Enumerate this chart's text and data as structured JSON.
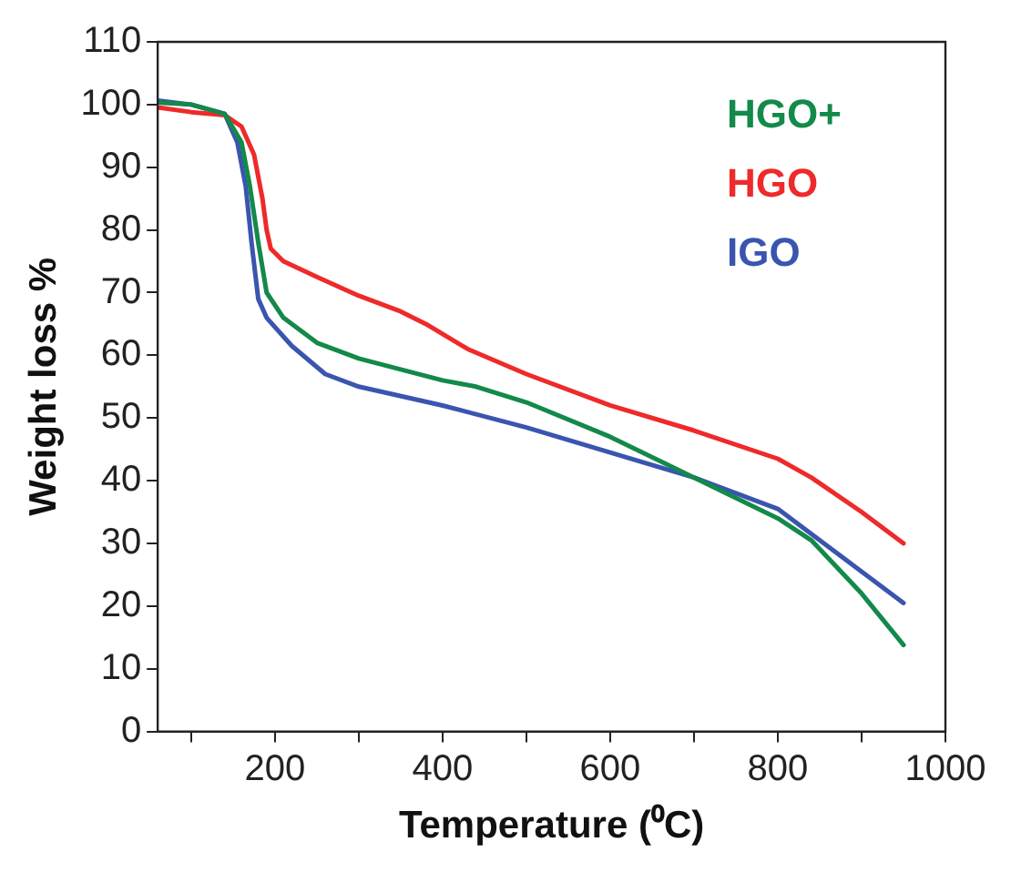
{
  "chart_data": {
    "type": "line",
    "xlabel": "Temperature (⁰C)",
    "ylabel": "Weight loss %",
    "xlim": [
      60,
      1000
    ],
    "xticks": [
      {
        "value": 100,
        "label": null
      },
      200,
      {
        "value": 300,
        "label": null
      },
      400,
      {
        "value": 500,
        "label": null
      },
      600,
      {
        "value": 700,
        "label": null
      },
      800,
      {
        "value": 900,
        "label": null
      },
      1000
    ],
    "ylim": [
      0,
      110
    ],
    "yticks": [
      0,
      10,
      20,
      30,
      40,
      50,
      60,
      70,
      80,
      90,
      100,
      110
    ],
    "grid": false,
    "legend": "top right",
    "marker": "none",
    "line_style": "solid",
    "series": [
      {
        "name": "HGO+",
        "color": "#13894a",
        "x": [
          62,
          100,
          140,
          160,
          170,
          180,
          190,
          210,
          250,
          300,
          400,
          440,
          500,
          600,
          700,
          800,
          840,
          900,
          950
        ],
        "values": [
          100.3,
          100,
          98.5,
          94,
          87,
          78,
          70,
          66,
          62,
          59.5,
          56,
          55,
          52.5,
          47,
          40.5,
          34,
          30.5,
          22,
          13.8
        ]
      },
      {
        "name": "HGO",
        "color": "#ee2a2a",
        "x": [
          62,
          100,
          140,
          160,
          175,
          185,
          190,
          195,
          210,
          250,
          300,
          350,
          380,
          430,
          500,
          600,
          700,
          800,
          840,
          900,
          950
        ],
        "values": [
          99.5,
          98.8,
          98.3,
          96.5,
          92,
          85,
          80,
          77,
          75,
          72.5,
          69.5,
          67,
          65,
          61,
          57,
          52,
          48,
          43.5,
          40.5,
          35,
          30
        ]
      },
      {
        "name": "IGO",
        "color": "#3a55b0",
        "x": [
          62,
          100,
          140,
          155,
          165,
          172,
          180,
          190,
          220,
          260,
          300,
          400,
          500,
          600,
          700,
          800,
          850,
          950
        ],
        "values": [
          100.6,
          100,
          98.5,
          94,
          87,
          78,
          69,
          66,
          61.5,
          57,
          55,
          52,
          48.5,
          44.5,
          40.5,
          35.5,
          30.5,
          20.5
        ]
      }
    ]
  }
}
